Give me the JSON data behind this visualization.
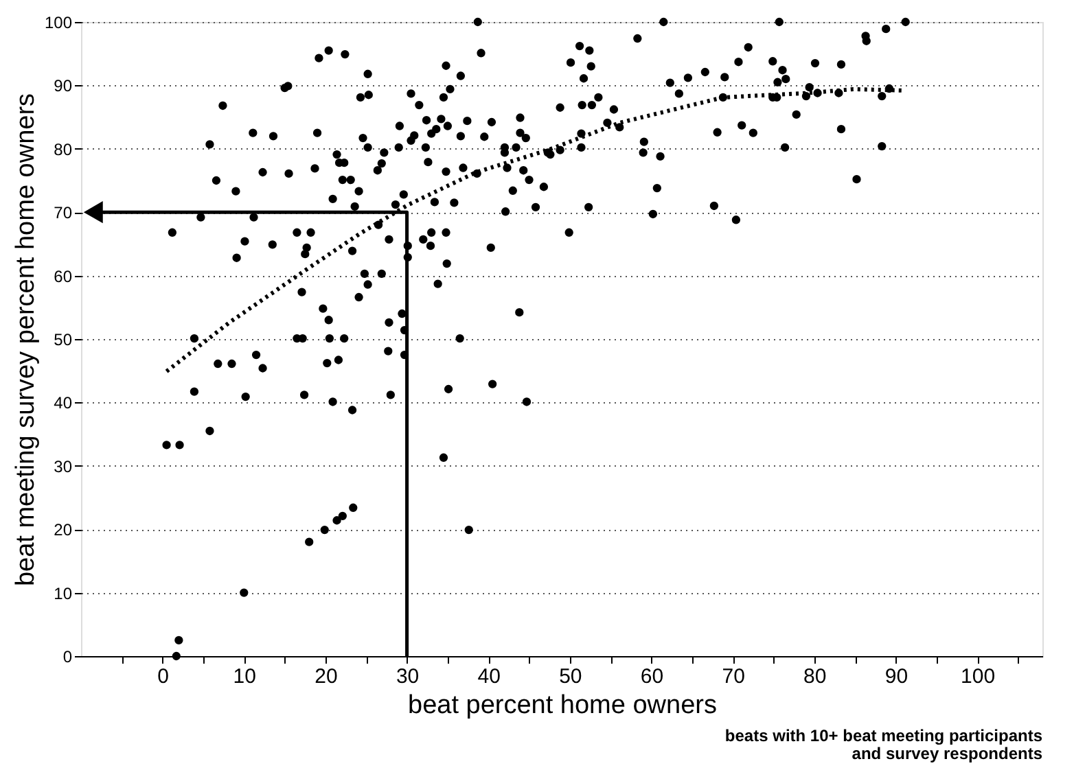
{
  "chart_data": {
    "type": "scatter",
    "xlabel": "beat percent home owners",
    "ylabel": "beat meeting survey percent home owners",
    "annotations": [
      "beats with 10+ beat meeting participants",
      "and survey respondents"
    ],
    "xlim": [
      -10,
      108
    ],
    "ylim": [
      0,
      100
    ],
    "xticks": [
      {
        "value": -5,
        "label": null
      },
      0,
      {
        "value": 5,
        "label": null
      },
      10,
      {
        "value": 15,
        "label": null
      },
      20,
      {
        "value": 25,
        "label": null
      },
      30,
      {
        "value": 35,
        "label": null
      },
      40,
      {
        "value": 45,
        "label": null
      },
      50,
      {
        "value": 55,
        "label": null
      },
      60,
      {
        "value": 65,
        "label": null
      },
      70,
      {
        "value": 75,
        "label": null
      },
      80,
      {
        "value": 85,
        "label": null
      },
      90,
      {
        "value": 95,
        "label": null
      },
      100,
      {
        "value": 105,
        "label": null
      }
    ],
    "yticks": [
      0,
      10,
      20,
      30,
      40,
      50,
      60,
      70,
      80,
      90,
      100
    ],
    "grid": "y",
    "series": [
      {
        "color": "#000000",
        "marker": "circle",
        "x": [
          20.4,
          19.2,
          22.4,
          25.2,
          15.4,
          15.0,
          25.3,
          24.3,
          7.4,
          11.1,
          13.6,
          19.0,
          5.8,
          24.6,
          25.2,
          29.0,
          29.1,
          21.4,
          21.7,
          22.3,
          27.2,
          26.9,
          26.4,
          12.3,
          15.5,
          18.7,
          6.6,
          9.0,
          22.1,
          23.1,
          24.1,
          20.9,
          23.6,
          29.6,
          28.6,
          4.7,
          11.2,
          1.2,
          16.5,
          18.2,
          26.5,
          27.8,
          10.1,
          13.5,
          17.7,
          17.5,
          23.3,
          9.1,
          24.8,
          26.9,
          25.2,
          24.1,
          17.1,
          19.7,
          20.4,
          29.4,
          27.8,
          3.9,
          16.5,
          17.2,
          20.5,
          22.3,
          29.7,
          6.8,
          8.5,
          11.5,
          12.3,
          20.2,
          21.6,
          27.7,
          29.7,
          3.9,
          10.2,
          17.4,
          20.9,
          23.3,
          28.0,
          5.8,
          0.5,
          2.1,
          23.4,
          21.4,
          19.9,
          18.0,
          22.1,
          10.0,
          2.0,
          1.7,
          38.7,
          39.1,
          34.8,
          36.6,
          30.5,
          31.5,
          34.5,
          35.3,
          30.9,
          30.5,
          32.4,
          33.0,
          33.6,
          34.2,
          35.0,
          32.3,
          32.6,
          37.4,
          36.6,
          40.4,
          39.5,
          43.9,
          43.9,
          44.6,
          42.0,
          42.0,
          43.4,
          36.9,
          34.8,
          38.6,
          42.3,
          44.3,
          45.0,
          46.8,
          43.0,
          47.3,
          47.6,
          48.8,
          51.4,
          51.4,
          48.8,
          51.5,
          52.7,
          53.5,
          55.4,
          54.6,
          56.1,
          50.1,
          51.2,
          52.4,
          52.6,
          51.7,
          58.3,
          61.5,
          62.3,
          63.4,
          64.5,
          66.6,
          69.0,
          68.8,
          68.1,
          59.1,
          59.0,
          61.1,
          60.7,
          60.2,
          67.7,
          52.3,
          45.8,
          42.1,
          33.4,
          35.8,
          33.0,
          34.8,
          32.0,
          32.9,
          34.9,
          40.3,
          49.9,
          33.8,
          30.1,
          30.1,
          43.8,
          36.5,
          35.1,
          40.5,
          44.7,
          34.5,
          37.6,
          75.7,
          91.2,
          88.8,
          86.3,
          86.4,
          71.9,
          70.7,
          74.9,
          80.1,
          83.3,
          76.1,
          76.5,
          75.5,
          74.9,
          75.4,
          79.4,
          79.0,
          80.4,
          83.0,
          89.2,
          88.3,
          77.8,
          71.1,
          72.5,
          83.3,
          76.4,
          88.3,
          85.2,
          70.4
        ],
        "values": [
          95.5,
          94.3,
          94.9,
          91.8,
          89.9,
          89.6,
          88.5,
          88.1,
          86.8,
          82.5,
          82.0,
          82.5,
          80.7,
          81.7,
          80.2,
          80.2,
          83.6,
          79.1,
          77.8,
          77.8,
          79.4,
          77.7,
          76.6,
          76.3,
          76.1,
          76.9,
          75.0,
          73.3,
          75.1,
          75.1,
          73.3,
          72.1,
          70.9,
          72.8,
          71.2,
          69.2,
          69.2,
          66.8,
          66.8,
          66.8,
          68.0,
          65.7,
          65.4,
          64.9,
          64.4,
          63.4,
          63.9,
          62.8,
          60.3,
          60.3,
          58.6,
          56.6,
          57.4,
          54.8,
          53.0,
          54.0,
          52.6,
          50.1,
          50.1,
          50.1,
          50.1,
          50.1,
          51.4,
          46.1,
          46.1,
          47.5,
          45.4,
          46.2,
          46.7,
          48.1,
          47.5,
          41.7,
          40.9,
          41.2,
          40.1,
          38.8,
          41.2,
          35.5,
          33.3,
          33.3,
          23.4,
          21.4,
          19.9,
          18.0,
          22.1,
          10.0,
          2.5,
          0.0,
          100.0,
          95.1,
          93.1,
          91.5,
          88.7,
          86.9,
          88.1,
          89.4,
          82.1,
          81.3,
          84.5,
          82.4,
          83.1,
          84.7,
          83.6,
          80.2,
          77.9,
          84.4,
          82.0,
          84.2,
          81.9,
          84.9,
          82.5,
          81.7,
          80.2,
          79.4,
          80.2,
          77.0,
          76.4,
          76.1,
          77.0,
          76.6,
          75.1,
          74.0,
          73.4,
          79.4,
          79.1,
          79.8,
          80.2,
          82.4,
          86.5,
          86.9,
          86.9,
          88.1,
          86.2,
          84.1,
          83.4,
          93.6,
          96.2,
          95.5,
          93.0,
          91.1,
          97.4,
          100.0,
          90.4,
          88.7,
          91.2,
          92.1,
          91.3,
          88.1,
          82.6,
          81.1,
          79.4,
          78.8,
          73.8,
          69.7,
          71.0,
          70.8,
          70.8,
          70.1,
          71.6,
          71.5,
          66.8,
          66.8,
          65.7,
          64.7,
          61.9,
          64.4,
          66.8,
          58.7,
          64.7,
          62.9,
          54.2,
          50.1,
          42.1,
          42.9,
          40.1,
          31.3,
          19.9,
          100.0,
          100.0,
          98.9,
          97.8,
          97.0,
          96.0,
          93.7,
          93.8,
          93.5,
          93.3,
          92.4,
          91.0,
          90.5,
          88.1,
          88.1,
          89.7,
          88.3,
          88.8,
          88.8,
          89.5,
          88.3,
          85.4,
          83.7,
          82.5,
          83.1,
          80.2,
          80.4,
          75.2,
          68.8
        ]
      },
      {
        "type": "line",
        "color": "#000000",
        "line_style": "dotted",
        "marker": "none",
        "x": [
          0.5,
          8.2,
          17.6,
          24.2,
          30.2,
          38.5,
          47.3,
          56.1,
          68.8,
          79.3,
          84.8,
          90.9
        ],
        "values": [
          44.9,
          52.6,
          60.9,
          66.6,
          71.2,
          76.3,
          79.8,
          84.1,
          88.1,
          88.8,
          89.4,
          89.2
        ]
      },
      {
        "type": "line",
        "color": "#000000",
        "line_style": "solid",
        "marker": "none",
        "x": [
          -8.5,
          30,
          30
        ],
        "values": [
          70,
          70,
          0
        ]
      }
    ]
  }
}
